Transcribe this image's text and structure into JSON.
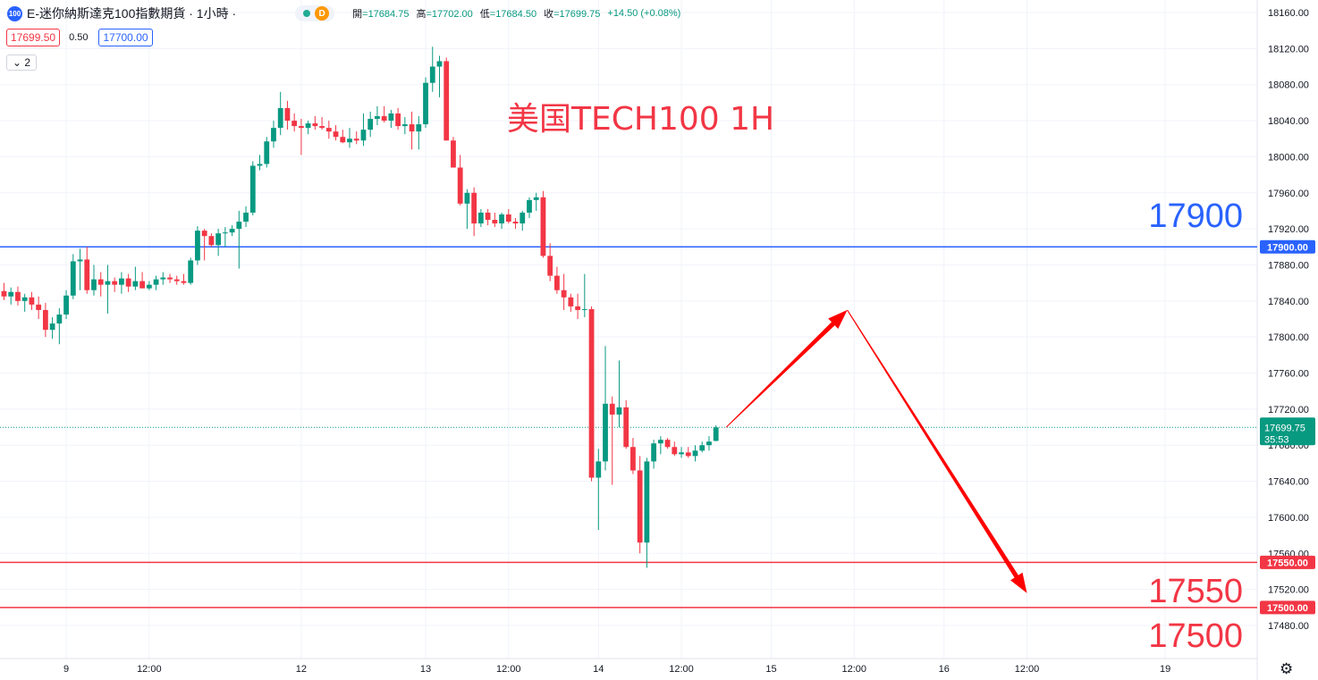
{
  "header": {
    "logo_text": "100",
    "symbol_title": "E-迷你納斯達克100指數期貨 · 1小時 ·",
    "d_badge": "D",
    "open_label": "開",
    "open_value": "=17684.75",
    "high_label": "高",
    "high_value": "=17702.00",
    "low_label": "低",
    "low_value": "=17684.50",
    "close_label": "收",
    "close_value": "=17699.75",
    "change": "+14.50 (+0.08%)"
  },
  "trade": {
    "sell": "17699.50",
    "spread": "0.50",
    "buy": "17700.00"
  },
  "indicator_toggle": "2",
  "annotations": {
    "title": "美国TECH100 1H",
    "level_17900": "17900",
    "level_17550": "17550",
    "level_17500": "17500"
  },
  "settings_icon": "gear-icon",
  "colors": {
    "up": "#089981",
    "down": "#f23645",
    "resistance": "#2962ff",
    "support": "#f23645",
    "arrow": "#ff0000",
    "title": "#f23645",
    "big_blue": "#2962ff"
  },
  "chart_data": {
    "type": "candlestick",
    "symbol": "E-迷你納斯達克100指數期貨",
    "interval": "1小時",
    "y_axis": {
      "ticks": [
        18160,
        18120,
        18080,
        18040,
        18000,
        17960,
        17920,
        17880,
        17840,
        17800,
        17760,
        17720,
        17680,
        17640,
        17600,
        17560,
        17520,
        17480
      ],
      "range": [
        17455,
        18175
      ]
    },
    "x_axis": {
      "labels": [
        {
          "t": 9,
          "text": "9"
        },
        {
          "t": 21,
          "text": "12:00"
        },
        {
          "t": 43,
          "text": "12"
        },
        {
          "t": 61,
          "text": "13"
        },
        {
          "t": 73,
          "text": "12:00"
        },
        {
          "t": 86,
          "text": "14"
        },
        {
          "t": 98,
          "text": "12:00"
        },
        {
          "t": 111,
          "text": "15"
        },
        {
          "t": 123,
          "text": "12:00"
        },
        {
          "t": 136,
          "text": "16"
        },
        {
          "t": 148,
          "text": "12:00"
        },
        {
          "t": 168,
          "text": "19"
        }
      ]
    },
    "candles": [
      [
        17851,
        17860,
        17841,
        17845
      ],
      [
        17845,
        17855,
        17836,
        17850
      ],
      [
        17850,
        17856,
        17835,
        17840
      ],
      [
        17840,
        17848,
        17828,
        17844
      ],
      [
        17844,
        17850,
        17830,
        17836
      ],
      [
        17836,
        17845,
        17820,
        17830
      ],
      [
        17830,
        17838,
        17800,
        17808
      ],
      [
        17808,
        17822,
        17798,
        17815
      ],
      [
        17815,
        17832,
        17792,
        17825
      ],
      [
        17825,
        17852,
        17820,
        17846
      ],
      [
        17846,
        17892,
        17842,
        17884
      ],
      [
        17884,
        17898,
        17852,
        17886
      ],
      [
        17886,
        17900,
        17848,
        17852
      ],
      [
        17852,
        17880,
        17846,
        17864
      ],
      [
        17864,
        17872,
        17845,
        17858
      ],
      [
        17858,
        17880,
        17826,
        17862
      ],
      [
        17862,
        17866,
        17850,
        17858
      ],
      [
        17858,
        17872,
        17848,
        17865
      ],
      [
        17865,
        17870,
        17850,
        17856
      ],
      [
        17856,
        17878,
        17852,
        17862
      ],
      [
        17862,
        17872,
        17855,
        17854
      ],
      [
        17854,
        17862,
        17852,
        17858
      ],
      [
        17858,
        17868,
        17852,
        17864
      ],
      [
        17864,
        17872,
        17858,
        17866
      ],
      [
        17866,
        17870,
        17860,
        17864
      ],
      [
        17864,
        17868,
        17858,
        17862
      ],
      [
        17862,
        17870,
        17858,
        17860
      ],
      [
        17860,
        17888,
        17858,
        17885
      ],
      [
        17885,
        17923,
        17880,
        17918
      ],
      [
        17918,
        17920,
        17885,
        17912
      ],
      [
        17912,
        17915,
        17900,
        17902
      ],
      [
        17902,
        17920,
        17890,
        17915
      ],
      [
        17915,
        17922,
        17900,
        17916
      ],
      [
        17916,
        17924,
        17912,
        17920
      ],
      [
        17920,
        17940,
        17876,
        17928
      ],
      [
        17928,
        17945,
        17922,
        17938
      ],
      [
        17938,
        17995,
        17935,
        17990
      ],
      [
        17990,
        18002,
        17985,
        17992
      ],
      [
        17992,
        18022,
        17988,
        18017
      ],
      [
        18017,
        18040,
        18010,
        18032
      ],
      [
        18032,
        18072,
        18024,
        18054
      ],
      [
        18054,
        18062,
        18030,
        18040
      ],
      [
        18040,
        18048,
        18028,
        18034
      ],
      [
        18034,
        18042,
        18002,
        18032
      ],
      [
        18032,
        18040,
        18025,
        18037
      ],
      [
        18037,
        18045,
        18030,
        18034
      ],
      [
        18034,
        18044,
        18030,
        18032
      ],
      [
        18032,
        18040,
        18020,
        18028
      ],
      [
        18028,
        18035,
        18018,
        18022
      ],
      [
        18022,
        18030,
        18015,
        18016
      ],
      [
        18016,
        18032,
        18010,
        18020
      ],
      [
        18020,
        18028,
        18014,
        18018
      ],
      [
        18018,
        18048,
        18012,
        18030
      ],
      [
        18030,
        18050,
        18022,
        18042
      ],
      [
        18042,
        18056,
        18035,
        18045
      ],
      [
        18045,
        18056,
        18038,
        18040
      ],
      [
        18040,
        18052,
        18032,
        18048
      ],
      [
        18048,
        18054,
        18030,
        18034
      ],
      [
        18034,
        18044,
        18025,
        18036
      ],
      [
        18036,
        18050,
        18008,
        18028
      ],
      [
        18028,
        18045,
        18008,
        18036
      ],
      [
        18036,
        18088,
        18032,
        18082
      ],
      [
        18082,
        18122,
        18072,
        18100
      ],
      [
        18100,
        18112,
        18066,
        18106
      ],
      [
        18106,
        18110,
        18018,
        18018
      ],
      [
        18018,
        18022,
        17988,
        17988
      ],
      [
        17988,
        18002,
        17946,
        17948
      ],
      [
        17948,
        17964,
        17920,
        17960
      ],
      [
        17960,
        17966,
        17912,
        17926
      ],
      [
        17926,
        17942,
        17922,
        17938
      ],
      [
        17938,
        17942,
        17924,
        17930
      ],
      [
        17930,
        17938,
        17922,
        17926
      ],
      [
        17926,
        17938,
        17920,
        17936
      ],
      [
        17936,
        17942,
        17926,
        17928
      ],
      [
        17928,
        17932,
        17920,
        17926
      ],
      [
        17926,
        17940,
        17918,
        17938
      ],
      [
        17938,
        17955,
        17932,
        17952
      ],
      [
        17952,
        17960,
        17940,
        17955
      ],
      [
        17955,
        17962,
        17888,
        17890
      ],
      [
        17890,
        17904,
        17862,
        17868
      ],
      [
        17868,
        17878,
        17848,
        17852
      ],
      [
        17852,
        17870,
        17830,
        17844
      ],
      [
        17844,
        17848,
        17828,
        17834
      ],
      [
        17834,
        17848,
        17820,
        17830
      ],
      [
        17830,
        17870,
        17822,
        17831
      ],
      [
        17831,
        17834,
        17640,
        17644
      ],
      [
        17644,
        17676,
        17586,
        17662
      ],
      [
        17662,
        17790,
        17652,
        17726
      ],
      [
        17726,
        17734,
        17636,
        17714
      ],
      [
        17714,
        17774,
        17700,
        17722
      ],
      [
        17722,
        17730,
        17676,
        17678
      ],
      [
        17678,
        17688,
        17648,
        17652
      ],
      [
        17652,
        17668,
        17560,
        17572
      ],
      [
        17572,
        17666,
        17544,
        17662
      ],
      [
        17662,
        17686,
        17654,
        17682
      ],
      [
        17682,
        17690,
        17670,
        17686
      ],
      [
        17686,
        17688,
        17676,
        17678
      ],
      [
        17678,
        17684,
        17668,
        17670
      ],
      [
        17670,
        17678,
        17666,
        17672
      ],
      [
        17672,
        17678,
        17666,
        17668
      ],
      [
        17668,
        17680,
        17662,
        17674
      ],
      [
        17674,
        17684,
        17672,
        17680
      ],
      [
        17680,
        17690,
        17674,
        17684
      ],
      [
        17684.75,
        17702,
        17684.5,
        17699.75
      ]
    ],
    "horizontal_lines": [
      {
        "value": 17900,
        "label": "17900.00",
        "color": "blue"
      },
      {
        "value": 17550,
        "label": "17550.00",
        "color": "red"
      },
      {
        "value": 17500,
        "label": "17500.00",
        "color": "red"
      }
    ],
    "current_price": {
      "value": 17699.75,
      "label": "17699.75",
      "countdown": "35:53"
    },
    "projection_arrows": [
      {
        "from": {
          "t": 104.5,
          "price": 17700
        },
        "to": {
          "t": 122,
          "price": 17830
        }
      },
      {
        "from": {
          "t": 122,
          "price": 17830
        },
        "to": {
          "t": 148,
          "price": 17516
        }
      }
    ]
  }
}
